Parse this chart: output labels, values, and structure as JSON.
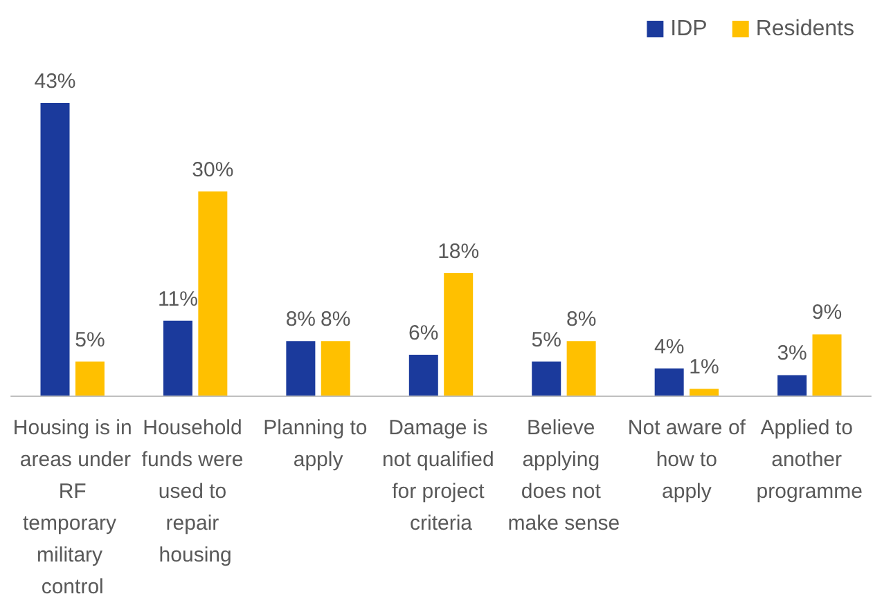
{
  "chart_data": {
    "type": "bar",
    "categories": [
      "Housing is in areas under RF temporary military control",
      "Household funds were used to repair housing",
      "Planning to apply",
      "Damage is not qualified for project criteria",
      "Believe applying does not make sense",
      "Not aware of how to apply",
      "Applied to another programme"
    ],
    "series": [
      {
        "name": "IDP",
        "color": "#1b3a9c",
        "values": [
          43,
          11,
          8,
          6,
          5,
          4,
          3
        ],
        "value_labels": [
          "43%",
          "11%",
          "8%",
          "6%",
          "5%",
          "4%",
          "3%"
        ]
      },
      {
        "name": "Residents",
        "color": "#ffc000",
        "values": [
          5,
          30,
          8,
          18,
          8,
          1,
          9
        ],
        "value_labels": [
          "5%",
          "30%",
          "8%",
          "18%",
          "8%",
          "1%",
          "9%"
        ]
      }
    ],
    "legend": "top right",
    "grid": false
  }
}
